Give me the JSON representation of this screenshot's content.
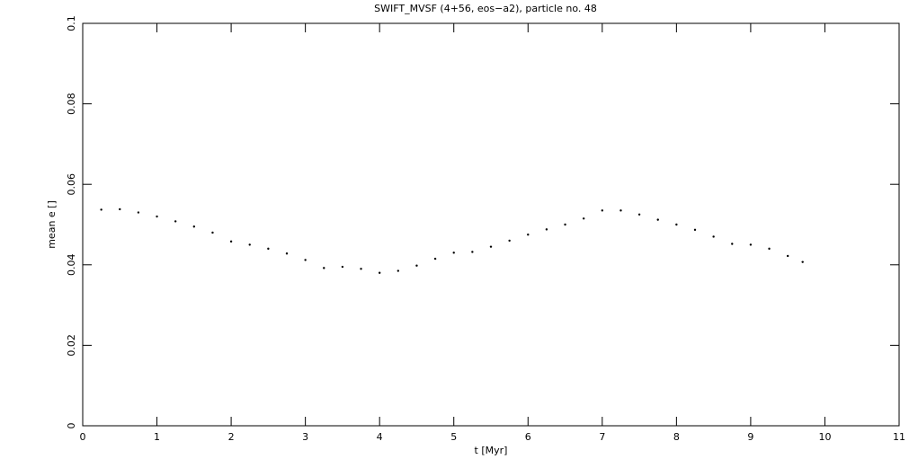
{
  "chart_data": {
    "type": "scatter",
    "title": "SWIFT_MVSF (4+56, eos−a2), particle no. 48",
    "x_label": "t [Myr]",
    "y_label": "mean e []",
    "x": [
      0.25,
      0.5,
      0.75,
      1.0,
      1.25,
      1.5,
      1.75,
      2.0,
      2.25,
      2.5,
      2.75,
      3.0,
      3.25,
      3.5,
      3.75,
      4.0,
      4.25,
      4.5,
      4.75,
      5.0,
      5.25,
      5.5,
      5.75,
      6.0,
      6.25,
      6.5,
      6.75,
      7.0,
      7.25,
      7.5,
      7.75,
      8.0,
      8.25,
      8.5,
      8.75,
      9.0,
      9.25,
      9.5,
      9.7
    ],
    "values": [
      0.0537,
      0.0538,
      0.053,
      0.052,
      0.0508,
      0.0495,
      0.048,
      0.0458,
      0.045,
      0.044,
      0.0428,
      0.0412,
      0.0392,
      0.0395,
      0.039,
      0.038,
      0.0385,
      0.0398,
      0.0415,
      0.043,
      0.0432,
      0.0445,
      0.046,
      0.0475,
      0.0488,
      0.05,
      0.0515,
      0.0535,
      0.0535,
      0.0525,
      0.0512,
      0.05,
      0.0487,
      0.047,
      0.0452,
      0.045,
      0.044,
      0.0422,
      0.0407
    ],
    "color": "#000000",
    "xlim": [
      0,
      11
    ],
    "xticks": [
      0,
      1,
      2,
      3,
      4,
      5,
      6,
      7,
      8,
      9,
      10,
      11
    ],
    "ylim": [
      0,
      0.1
    ],
    "yticks": [
      0,
      0.02,
      0.04,
      0.06,
      0.08,
      0.1
    ]
  }
}
